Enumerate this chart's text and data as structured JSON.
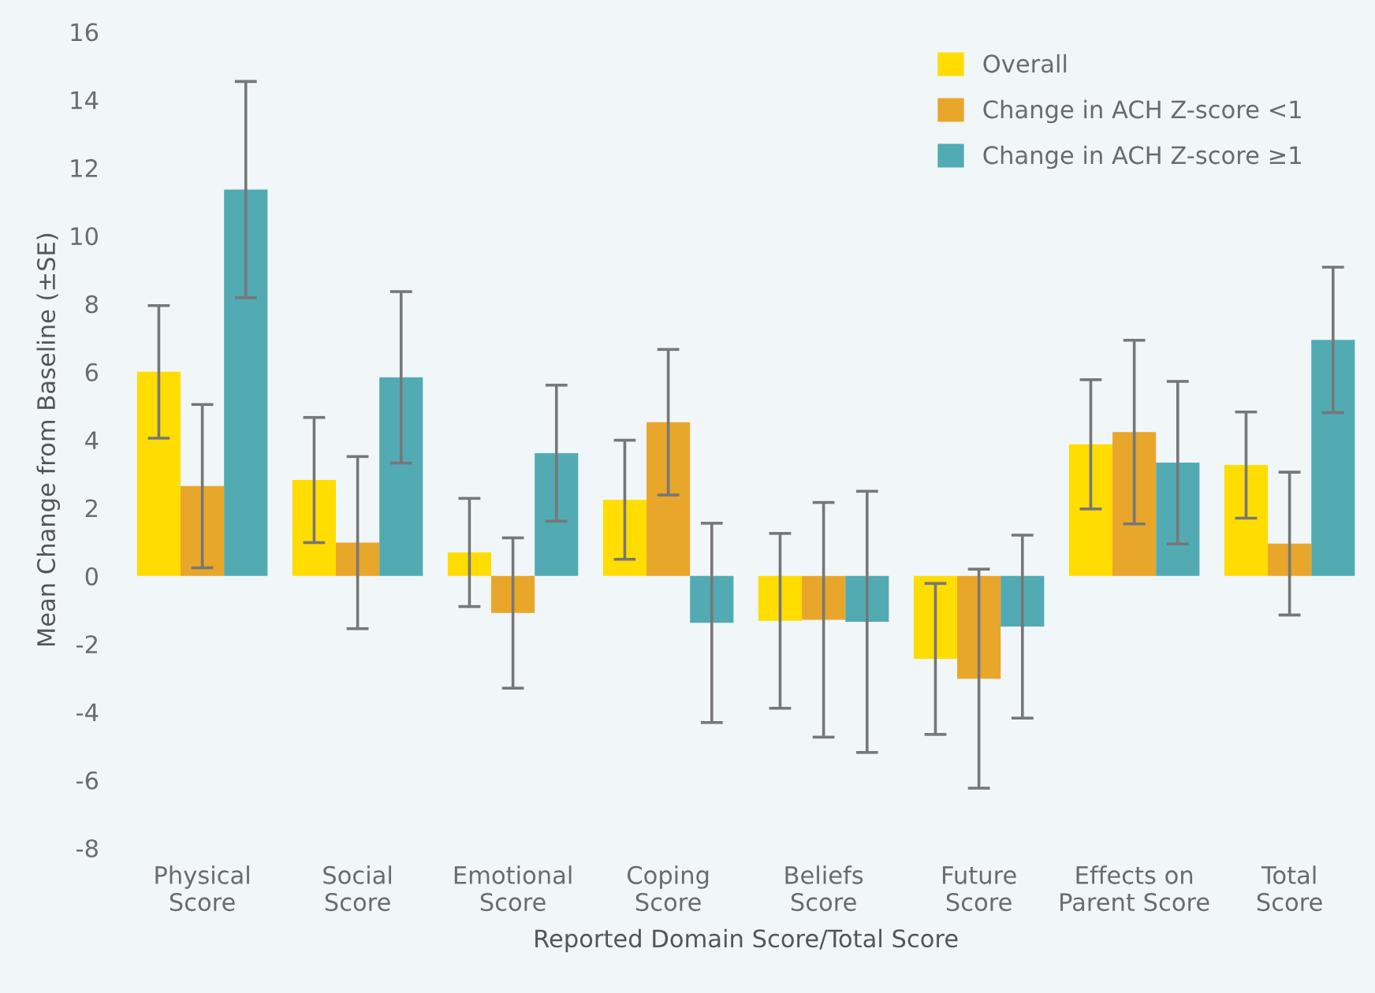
{
  "chart_data": {
    "type": "bar",
    "xlabel": "Reported Domain Score/Total Score",
    "ylabel": "Mean Change from Baseline (±SE)",
    "categories": [
      "Physical\nScore",
      "Social\nScore",
      "Emotional\nScore",
      "Coping\nScore",
      "Beliefs\nScore",
      "Future\nScore",
      "Effects on\nParent Score",
      "Total\nScore"
    ],
    "series": [
      {
        "name": "Overall",
        "color": "#ffdd00",
        "values": [
          6.0,
          2.82,
          0.69,
          2.24,
          -1.32,
          -2.44,
          3.87,
          3.26
        ],
        "errors": [
          1.95,
          1.84,
          1.59,
          1.75,
          2.57,
          2.22,
          1.9,
          1.56
        ]
      },
      {
        "name": "Change in ACH Z-score <1",
        "color": "#e8a62a",
        "values": [
          2.64,
          0.98,
          -1.09,
          4.52,
          -1.29,
          -3.02,
          4.23,
          0.95
        ],
        "errors": [
          2.4,
          2.53,
          2.21,
          2.14,
          3.45,
          3.22,
          2.7,
          2.1
        ]
      },
      {
        "name": "Change in ACH Z-score ≥1",
        "color": "#52abb3",
        "values": [
          11.36,
          5.84,
          3.61,
          -1.38,
          -1.35,
          -1.49,
          3.33,
          6.94
        ],
        "errors": [
          3.18,
          2.52,
          2.0,
          2.93,
          3.84,
          2.69,
          2.39,
          2.14
        ]
      }
    ],
    "ylim": [
      -8,
      16
    ],
    "yticks": [
      -8,
      -6,
      -4,
      -2,
      0,
      2,
      4,
      6,
      8,
      10,
      12,
      14,
      16
    ],
    "grid": false,
    "legend": "top right"
  }
}
